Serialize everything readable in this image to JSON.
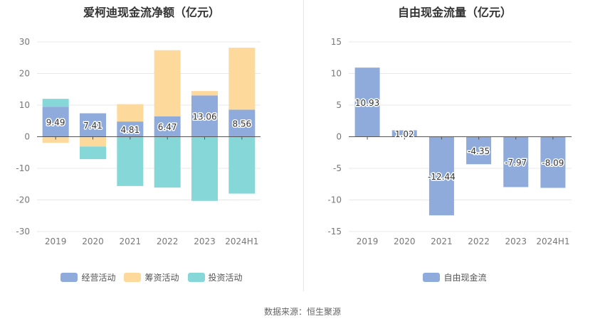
{
  "source": "数据来源：恒生聚源",
  "chart_data": [
    {
      "type": "bar",
      "stacked": true,
      "title": "爱柯迪现金流净额（亿元）",
      "categories": [
        "2019",
        "2020",
        "2021",
        "2022",
        "2023",
        "2024H1"
      ],
      "ylim": [
        -30,
        30
      ],
      "yticks": [
        30,
        20,
        10,
        0,
        -10,
        -20,
        -30
      ],
      "grid": true,
      "legend": "bottom",
      "series": [
        {
          "name": "经营活动",
          "color": "#8eabdc",
          "values": [
            9.49,
            7.41,
            4.81,
            6.47,
            13.06,
            8.56
          ],
          "labels": [
            "9.49",
            "7.41",
            "4.81",
            "6.47",
            "13.06",
            "8.56"
          ]
        },
        {
          "name": "筹资活动",
          "color": "#fed99c",
          "values": [
            -1.9,
            -3.1,
            5.5,
            20.9,
            1.4,
            19.6
          ]
        },
        {
          "name": "投资活动",
          "color": "#86d8d8",
          "values": [
            2.5,
            -4.0,
            -15.6,
            -16.1,
            -20.3,
            -18.0
          ]
        }
      ]
    },
    {
      "type": "bar",
      "title": "自由现金流量（亿元）",
      "categories": [
        "2019",
        "2020",
        "2021",
        "2022",
        "2023",
        "2024H1"
      ],
      "ylim": [
        -15,
        15
      ],
      "yticks": [
        15,
        10,
        5,
        0,
        -5,
        -10,
        -15
      ],
      "grid": true,
      "legend": "bottom",
      "series": [
        {
          "name": "自由现金流",
          "color": "#8eabdc",
          "values": [
            10.93,
            1.02,
            -12.44,
            -4.35,
            -7.97,
            -8.09
          ],
          "labels": [
            "10.93",
            "1.02",
            "-12.44",
            "-4.35",
            "-7.97",
            "-8.09"
          ]
        }
      ]
    }
  ]
}
